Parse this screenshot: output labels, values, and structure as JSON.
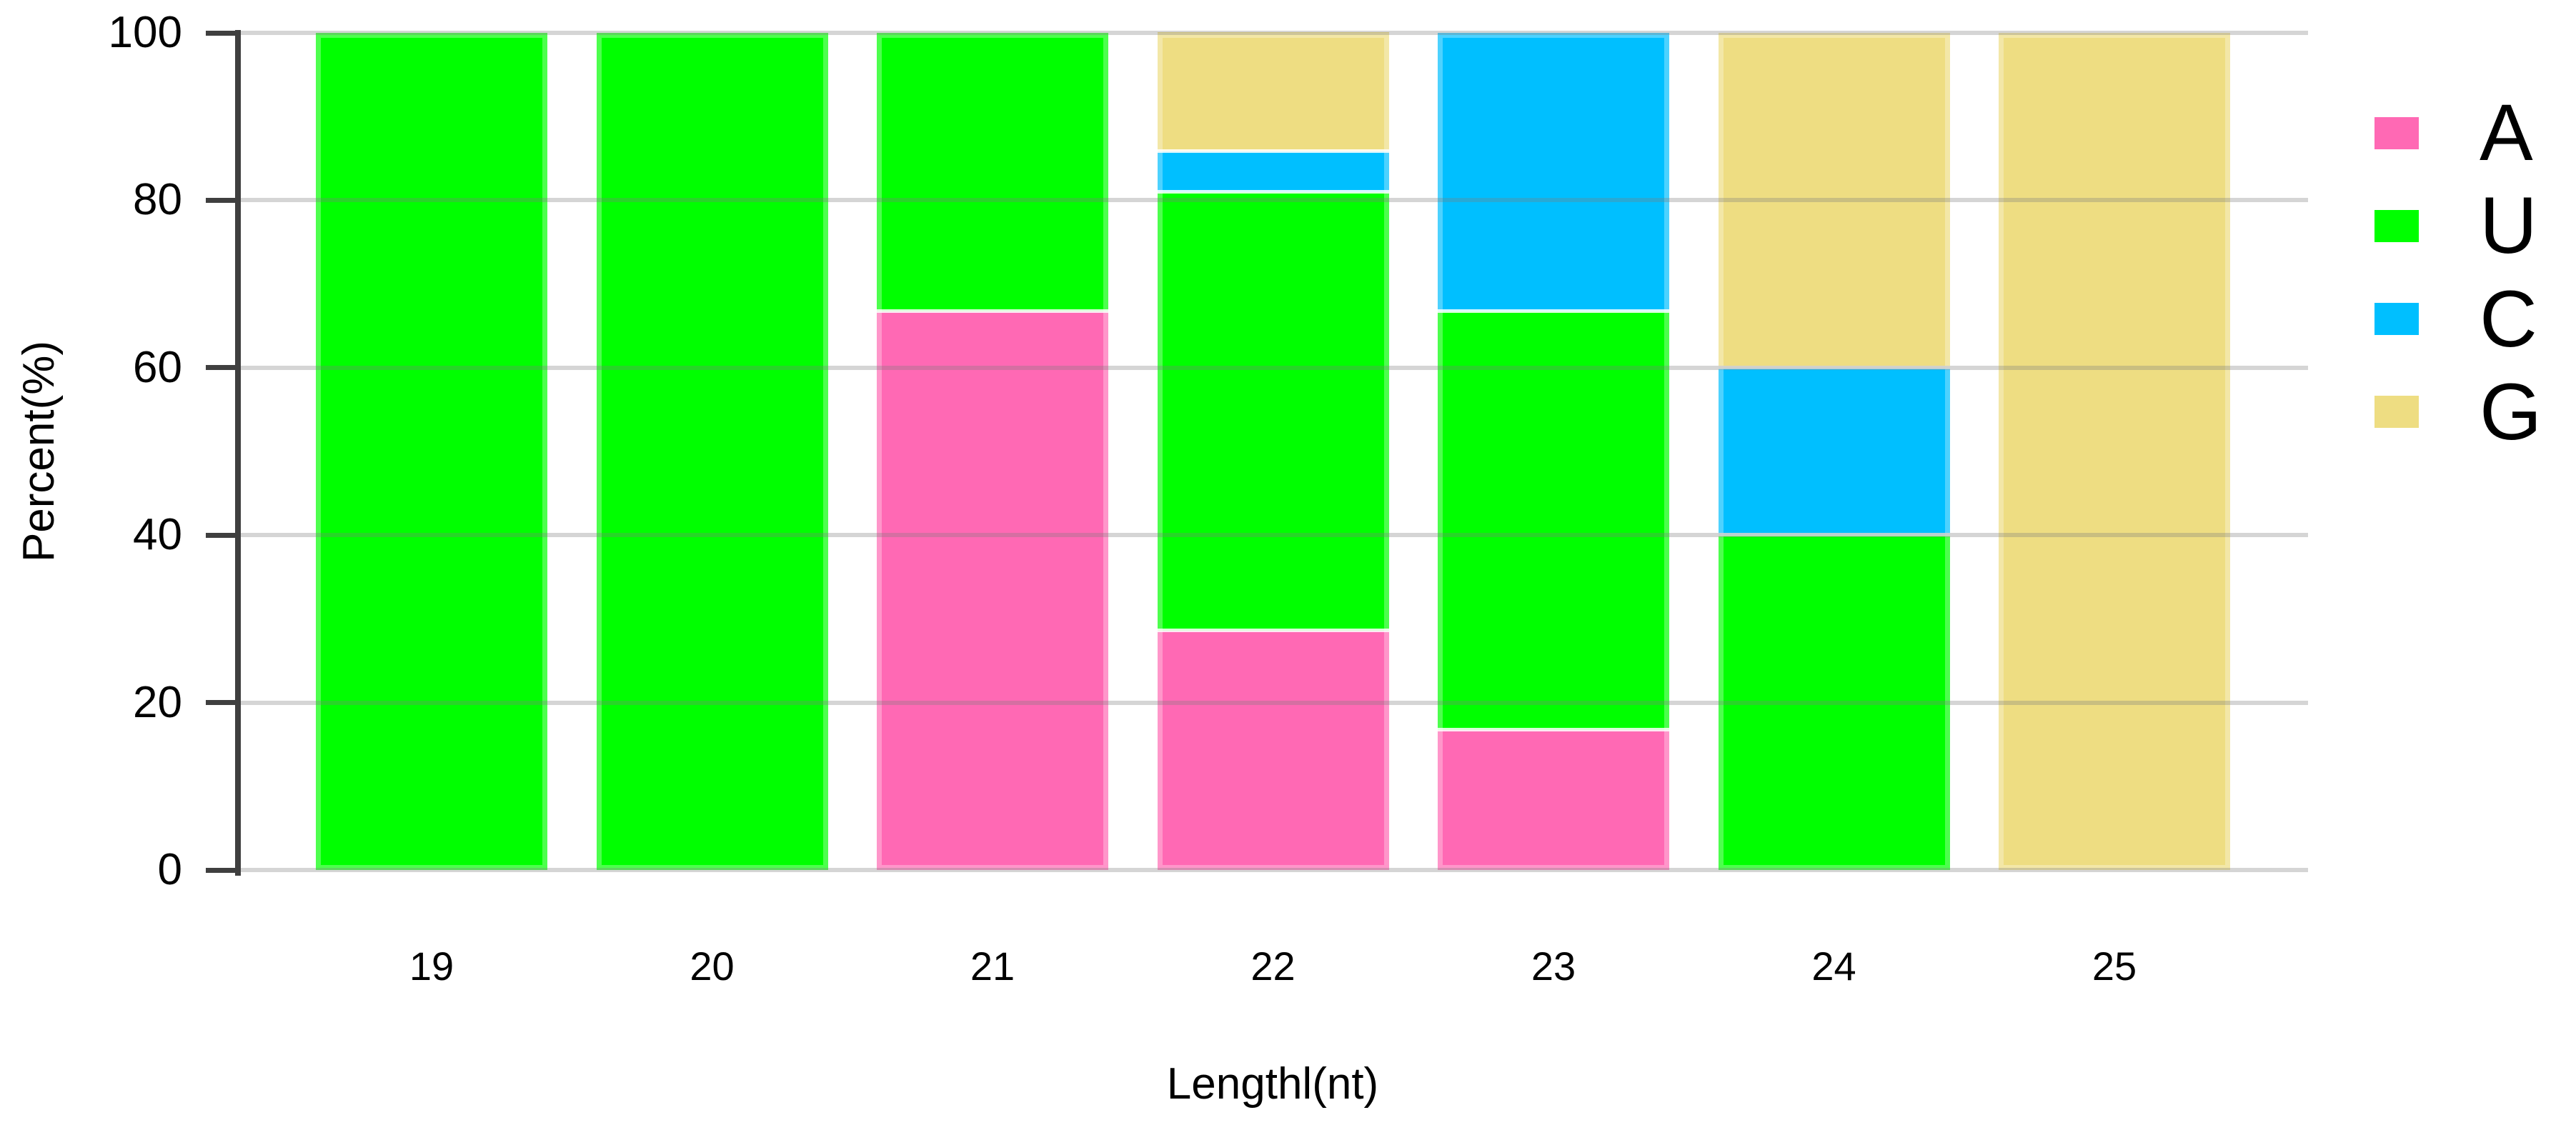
{
  "chart_data": {
    "type": "bar",
    "stacked": true,
    "orientation": "vertical",
    "title": "",
    "xlabel": "Lengthl(nt)",
    "ylabel": "Percent(%)",
    "categories": [
      "19",
      "20",
      "21",
      "22",
      "23",
      "24",
      "25"
    ],
    "series": [
      {
        "name": "A",
        "color": "#FF69B4",
        "values": [
          0,
          0,
          66.7,
          28.6,
          16.7,
          0,
          0
        ]
      },
      {
        "name": "U",
        "color": "#00FF00",
        "values": [
          100,
          100,
          33.3,
          52.4,
          50,
          40,
          0
        ]
      },
      {
        "name": "C",
        "color": "#00BFFF",
        "values": [
          0,
          0,
          0,
          4.8,
          33.3,
          20,
          0
        ]
      },
      {
        "name": "G",
        "color": "#EEDD82",
        "values": [
          0,
          0,
          0,
          14.3,
          0,
          40,
          100
        ]
      }
    ],
    "stack_order_bottom_to_top": [
      "A",
      "U",
      "C",
      "G"
    ],
    "ylim": [
      0,
      100
    ],
    "yticks": [
      0,
      20,
      40,
      60,
      80,
      100
    ],
    "grid": true,
    "gridlines_over_bars": true,
    "legend_position": "right",
    "legend": [
      "A",
      "U",
      "C",
      "G"
    ]
  },
  "colors": {
    "background": "#FFFFFF",
    "axis": "#3F3F3F",
    "gridline_rgba": "rgba(125,125,125,0.32)",
    "text": "#000000"
  }
}
